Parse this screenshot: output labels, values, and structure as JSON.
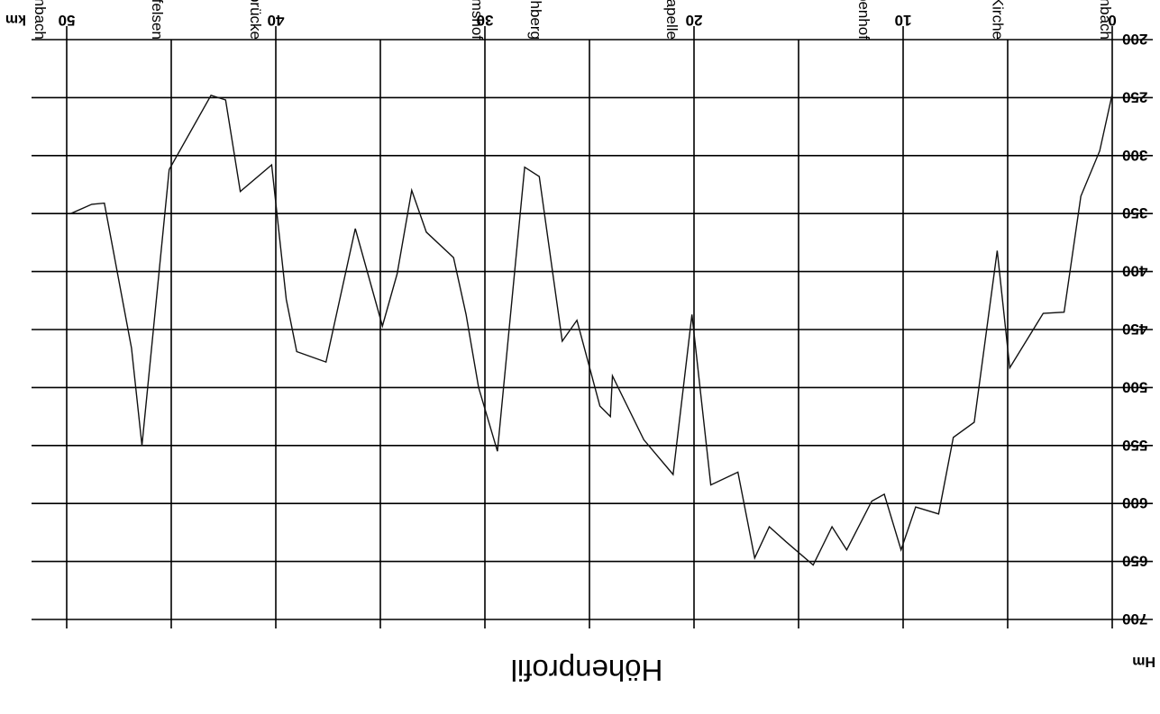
{
  "chart_data": {
    "type": "line",
    "title": "Höhenprofil",
    "xlabel": "km",
    "ylabel": "Hm",
    "xlim": [
      0,
      50
    ],
    "ylim": [
      200,
      700
    ],
    "x_ticks": [
      0,
      10,
      20,
      30,
      40,
      50
    ],
    "x_tick_labels": [
      "0",
      "10",
      "20",
      "30",
      "40",
      "50"
    ],
    "y_ticks": [
      200,
      250,
      300,
      350,
      400,
      450,
      500,
      550,
      600,
      650,
      700
    ],
    "y_tick_labels": [
      "200",
      "250",
      "300",
      "350",
      "400",
      "450",
      "500",
      "550",
      "600",
      "650",
      "700"
    ],
    "x_minor_gridlines": [
      5,
      15,
      25,
      35,
      45
    ],
    "grid": true,
    "series": [
      {
        "x": [
          0,
          0.6,
          1.5,
          2.3,
          3.3,
          4.9,
          5.5,
          6.6,
          7.6,
          8.3,
          9.4,
          10.1,
          10.9,
          11.5,
          12.7,
          13.4,
          14.3,
          15.6,
          16.4,
          17.1,
          17.9,
          19.2,
          20.1,
          21.0,
          22.4,
          23.9,
          24.0,
          24.5,
          25.6,
          26.3,
          27.4,
          28.1,
          29.4,
          30.3,
          30.9,
          31.5,
          32.8,
          33.5,
          34.2,
          34.9,
          36.2,
          37.6,
          39.0,
          39.5,
          40.2,
          41.7,
          42.4,
          43.1,
          45.1,
          46.4,
          46.9,
          48.2,
          48.8,
          49.8
        ],
        "y": [
          247,
          296,
          335,
          435,
          436,
          483,
          382,
          530,
          543,
          609,
          603,
          640,
          592,
          598,
          640,
          620,
          653,
          633,
          620,
          647,
          573,
          584,
          437,
          575,
          545,
          490,
          525,
          516,
          442,
          460,
          318,
          310,
          555,
          500,
          437,
          388,
          366,
          330,
          402,
          447,
          363,
          478,
          469,
          424,
          308,
          331,
          252,
          248,
          312,
          550,
          466,
          341,
          342,
          350
        ]
      }
    ],
    "annotations": [
      {
        "text": "Sportplatz Kirnbach",
        "x": 0.25
      },
      {
        "text": "Kirnbach Kirche",
        "x": 5.4
      },
      {
        "text": "Horbenhof",
        "x": 11.8
      },
      {
        "text": "St. Jakobuskapelle",
        "x": 21.0
      },
      {
        "text": "Höhberg",
        "x": 27.5
      },
      {
        "text": "Ippichen Abrahamshof",
        "x": 30.3
      },
      {
        "text": "Wolfalbrücke",
        "x": 40.9
      },
      {
        "text": "Spitzfelsen",
        "x": 45.6
      },
      {
        "text": "Sportplatz Kirnbach",
        "x": 51.2
      }
    ],
    "orientation": "rotated-180"
  }
}
